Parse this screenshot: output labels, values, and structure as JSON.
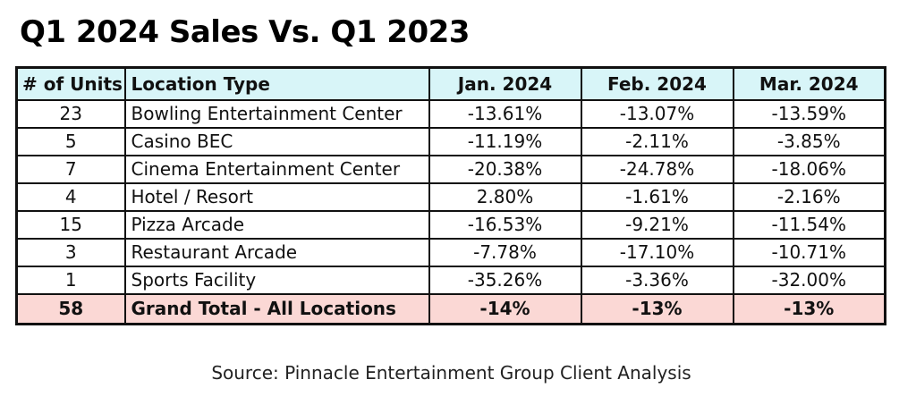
{
  "title": "Q1 2024 Sales Vs. Q1 2023",
  "table": {
    "headers": [
      "# of Units",
      "Location Type",
      "Jan. 2024",
      "Feb. 2024",
      "Mar. 2024"
    ],
    "rows": [
      {
        "units": "23",
        "type": "Bowling Entertainment Center",
        "jan": "-13.61%",
        "feb": "-13.07%",
        "mar": "-13.59%"
      },
      {
        "units": "5",
        "type": "Casino BEC",
        "jan": "-11.19%",
        "feb": "-2.11%",
        "mar": "-3.85%"
      },
      {
        "units": "7",
        "type": "Cinema Entertainment Center",
        "jan": "-20.38%",
        "feb": "-24.78%",
        "mar": "-18.06%"
      },
      {
        "units": "4",
        "type": "Hotel / Resort",
        "jan": "2.80%",
        "feb": "-1.61%",
        "mar": "-2.16%"
      },
      {
        "units": "15",
        "type": "Pizza Arcade",
        "jan": "-16.53%",
        "feb": "-9.21%",
        "mar": "-11.54%"
      },
      {
        "units": "3",
        "type": "Restaurant Arcade",
        "jan": "-7.78%",
        "feb": "-17.10%",
        "mar": "-10.71%"
      },
      {
        "units": "1",
        "type": "Sports Facility",
        "jan": "-35.26%",
        "feb": "-3.36%",
        "mar": "-32.00%"
      }
    ],
    "total": {
      "units": "58",
      "type": "Grand Total - All Locations",
      "jan": "-14%",
      "feb": "-13%",
      "mar": "-13%"
    }
  },
  "source": "Source: Pinnacle Entertainment Group Client Analysis",
  "colors": {
    "header_bg": "#d8f5f8",
    "total_bg": "#fbd8d5"
  }
}
